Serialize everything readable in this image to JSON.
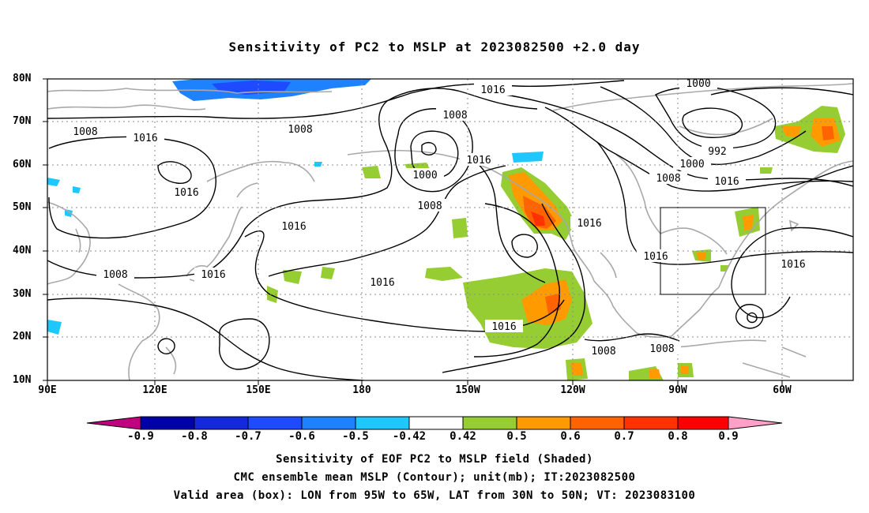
{
  "title": "Sensitivity of PC2 to MSLP at 2023082500 +2.0 day",
  "lat_labels": [
    "80N",
    "70N",
    "60N",
    "50N",
    "40N",
    "30N",
    "20N",
    "10N"
  ],
  "lon_labels": [
    "90E",
    "120E",
    "150E",
    "180",
    "150W",
    "120W",
    "90W",
    "60W"
  ],
  "isobar_labels": [
    "1016",
    "1008",
    "1016",
    "1016",
    "1008",
    "1000",
    "1016",
    "1008",
    "1016",
    "1008",
    "1016",
    "1016",
    "1008",
    "1016",
    "1000",
    "992",
    "1000",
    "1008",
    "1016",
    "1016",
    "1016",
    "1016",
    "1008",
    "1008"
  ],
  "colorbar": {
    "ticks": [
      "-0.9",
      "-0.8",
      "-0.7",
      "-0.6",
      "-0.5",
      "-0.42",
      "0.42",
      "0.5",
      "0.6",
      "0.7",
      "0.8",
      "0.9"
    ],
    "colors": [
      "#c0007f",
      "#0000a8",
      "#1428dc",
      "#1e4bff",
      "#1e82ff",
      "#1ec8ff",
      "#ffffff",
      "#96cd32",
      "#ff9b00",
      "#ff6400",
      "#ff3200",
      "#ff0000",
      "#ffa0c8"
    ]
  },
  "box": {
    "lon_from": "95W",
    "lon_to": "65W",
    "lat_from": "30N",
    "lat_to": "50N"
  },
  "footer": [
    "Sensitivity of EOF PC2 to MSLP field (Shaded)",
    "CMC ensemble mean MSLP (Contour); unit(mb); IT:2023082500",
    "Valid area (box): LON from 95W to 65W, LAT from 30N to 50N; VT: 2023083100"
  ]
}
